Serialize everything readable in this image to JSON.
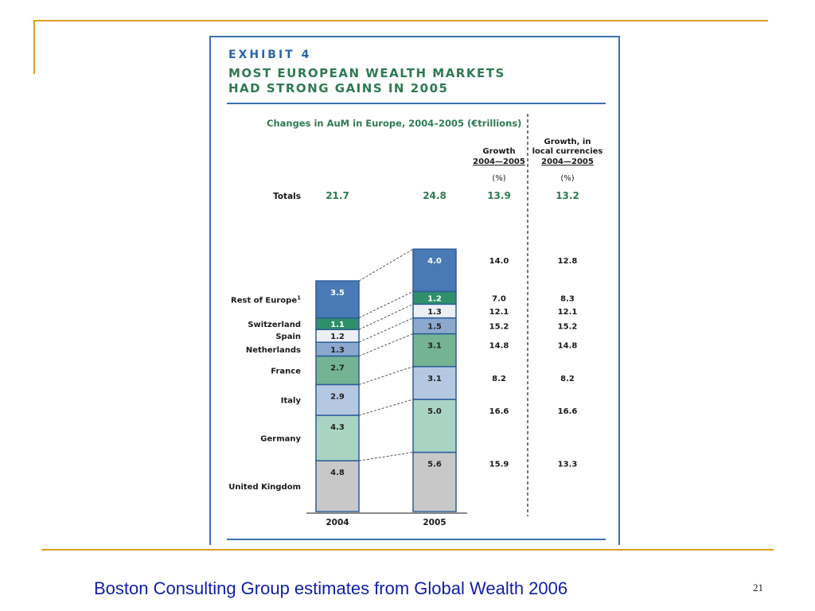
{
  "exhibit": {
    "label": "EXHIBIT 4",
    "title_line1": "MOST EUROPEAN WEALTH MARKETS",
    "title_line2": "HAD STRONG GAINS IN 2005"
  },
  "colors": {
    "frame": "#d9a020",
    "panel_border": "#3a72b0",
    "title_green": "#2f7a52",
    "caption_blue": "#0f1fa8"
  },
  "chart_data": {
    "type": "bar",
    "stacked": true,
    "title": "Changes in AuM in Europe, 2004–2005 (€trillions)",
    "categories": [
      "2004",
      "2005"
    ],
    "totals_label": "Totals",
    "totals": [
      "21.7",
      "24.8"
    ],
    "columns": [
      {
        "header": "Growth",
        "subheader": "2004—2005",
        "unit": "(%)",
        "total": "13.9"
      },
      {
        "header": "Growth, in",
        "header2": "local currencies",
        "subheader": "2004—2005",
        "unit": "(%)",
        "total": "13.2"
      }
    ],
    "series": [
      {
        "name": "United Kingdom",
        "values": [
          4.8,
          5.6
        ],
        "growth": "15.9",
        "growth_local": "13.3",
        "color": "#c8c8c8"
      },
      {
        "name": "Germany",
        "values": [
          4.3,
          5.0
        ],
        "growth": "16.6",
        "growth_local": "16.6",
        "color": "#a9d4c4"
      },
      {
        "name": "Italy",
        "values": [
          2.9,
          3.1
        ],
        "growth": "8.2",
        "growth_local": "8.2",
        "color": "#b4c8e2"
      },
      {
        "name": "France",
        "values": [
          2.7,
          3.1
        ],
        "growth": "14.8",
        "growth_local": "14.8",
        "color": "#74b394"
      },
      {
        "name": "Netherlands",
        "values": [
          1.3,
          1.5
        ],
        "growth": "15.2",
        "growth_local": "15.2",
        "color": "#8ca8cf"
      },
      {
        "name": "Spain",
        "values": [
          1.2,
          1.3
        ],
        "growth": "12.1",
        "growth_local": "12.1",
        "color": "#eceff3"
      },
      {
        "name": "Switzerland",
        "values": [
          1.1,
          1.2
        ],
        "growth": "7.0",
        "growth_local": "8.3",
        "color": "#2f8f6b"
      },
      {
        "name": "Rest of Europe",
        "footnote": "1",
        "values": [
          3.5,
          4.0
        ],
        "growth": "14.0",
        "growth_local": "12.8",
        "color": "#4a7ab5"
      }
    ]
  },
  "caption": "Boston Consulting Group estimates from Global Wealth 2006",
  "slide_number": "21"
}
